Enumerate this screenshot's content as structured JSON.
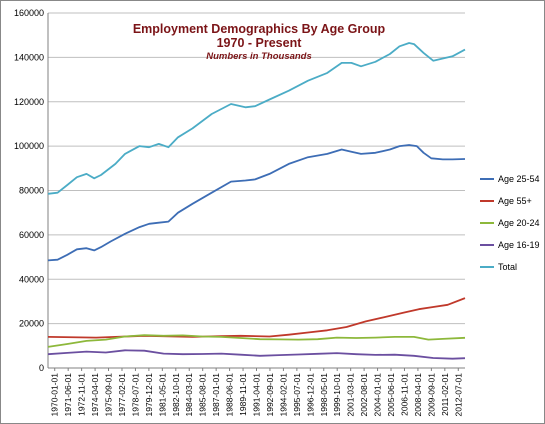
{
  "chart_data": {
    "type": "line",
    "title": "Employment Demographics By Age Group",
    "subtitle": "1970 - Present",
    "note": "Numbers in Thousands",
    "ylim": [
      0,
      160000
    ],
    "yticks": [
      0,
      20000,
      40000,
      60000,
      80000,
      100000,
      120000,
      140000,
      160000
    ],
    "ytick_labels": [
      "0",
      "20000",
      "40000",
      "60000",
      "80000",
      "100000",
      "120000",
      "140000",
      "160000"
    ],
    "grid": "horizontal",
    "legend_position": "right",
    "xlim": [
      1970.0,
      2013.3
    ],
    "xtick_labels": [
      "1970-01-01",
      "1971-06-01",
      "1972-11-01",
      "1974-04-01",
      "1975-09-01",
      "1977-02-01",
      "1978-07-01",
      "1979-12-01",
      "1981-05-01",
      "1982-10-01",
      "1984-03-01",
      "1985-08-01",
      "1987-01-01",
      "1988-06-01",
      "1989-11-01",
      "1991-04-01",
      "1992-09-01",
      "1994-02-01",
      "1995-07-01",
      "1996-12-01",
      "1998-05-01",
      "1999-10-01",
      "2001-03-01",
      "2002-08-01",
      "2004-01-01",
      "2005-06-01",
      "2006-11-01",
      "2008-04-01",
      "2009-09-01",
      "2011-02-01",
      "2012-07-01"
    ],
    "series": [
      {
        "name": "Age 25-54",
        "color": "#3d6db5",
        "x": [
          1970.0,
          1971.0,
          1972.0,
          1973.0,
          1974.0,
          1974.8,
          1975.5,
          1976.5,
          1978.0,
          1979.5,
          1980.5,
          1981.5,
          1982.5,
          1983.5,
          1985.0,
          1987.0,
          1989.0,
          1990.5,
          1991.5,
          1993.0,
          1995.0,
          1997.0,
          1999.0,
          2000.5,
          2001.5,
          2002.5,
          2004.0,
          2005.5,
          2006.5,
          2007.5,
          2008.3,
          2009.0,
          2009.8,
          2011.0,
          2012.0,
          2013.3
        ],
        "values": [
          48500,
          48800,
          51000,
          53500,
          54000,
          53000,
          54500,
          57000,
          60500,
          63500,
          65000,
          65500,
          66000,
          70000,
          74000,
          79000,
          84000,
          84500,
          85000,
          87500,
          92000,
          95000,
          96500,
          98500,
          97500,
          96500,
          97000,
          98500,
          100000,
          100500,
          100000,
          97000,
          94500,
          94000,
          94000,
          94200
        ]
      },
      {
        "name": "Age 55+",
        "color": "#c0392b",
        "x": [
          1970.0,
          1975.0,
          1978.0,
          1980.0,
          1985.0,
          1988.0,
          1990.0,
          1993.0,
          1995.0,
          1997.0,
          1999.0,
          2001.0,
          2003.0,
          2005.0,
          2007.0,
          2008.5,
          2010.0,
          2011.5,
          2013.3
        ],
        "values": [
          14000,
          13700,
          14200,
          14500,
          14000,
          14400,
          14500,
          14200,
          15000,
          16000,
          17000,
          18500,
          21000,
          23000,
          25000,
          26500,
          27500,
          28500,
          31500
        ]
      },
      {
        "name": "Age 20-24",
        "color": "#8db83b",
        "x": [
          1970.0,
          1972.0,
          1974.0,
          1976.0,
          1978.0,
          1980.0,
          1982.0,
          1984.0,
          1986.0,
          1988.0,
          1990.0,
          1992.0,
          1994.0,
          1996.0,
          1998.0,
          2000.0,
          2002.0,
          2004.0,
          2006.0,
          2008.0,
          2009.5,
          2011.0,
          2013.3
        ],
        "values": [
          9500,
          10800,
          12200,
          12800,
          14200,
          14800,
          14500,
          14700,
          14200,
          14000,
          13500,
          13000,
          12900,
          12800,
          13000,
          13700,
          13500,
          13700,
          14000,
          14000,
          12800,
          13100,
          13600
        ]
      },
      {
        "name": "Age 16-19",
        "color": "#6b4fa0",
        "x": [
          1970.0,
          1972.0,
          1974.0,
          1976.0,
          1978.0,
          1980.0,
          1982.0,
          1984.0,
          1986.0,
          1988.0,
          1990.0,
          1992.0,
          1994.0,
          1996.0,
          1998.0,
          2000.0,
          2002.0,
          2004.0,
          2006.0,
          2008.0,
          2010.0,
          2012.0,
          2013.3
        ],
        "values": [
          6200,
          6800,
          7400,
          7000,
          8000,
          7800,
          6500,
          6200,
          6300,
          6500,
          6000,
          5500,
          5800,
          6100,
          6400,
          6700,
          6200,
          5900,
          6000,
          5500,
          4500,
          4200,
          4400
        ]
      },
      {
        "name": "Total",
        "color": "#4bacc6",
        "x": [
          1970.0,
          1971.0,
          1972.0,
          1973.0,
          1974.0,
          1974.8,
          1975.5,
          1977.0,
          1978.0,
          1979.5,
          1980.5,
          1981.5,
          1982.5,
          1983.5,
          1985.0,
          1987.0,
          1989.0,
          1990.5,
          1991.5,
          1993.0,
          1995.0,
          1997.0,
          1999.0,
          2000.5,
          2001.5,
          2002.5,
          2004.0,
          2005.5,
          2006.5,
          2007.5,
          2008.0,
          2009.0,
          2010.0,
          2011.0,
          2012.0,
          2013.3
        ],
        "values": [
          78500,
          79000,
          82500,
          86000,
          87500,
          85500,
          87000,
          92000,
          96500,
          100000,
          99500,
          101000,
          99500,
          104000,
          108000,
          114500,
          119000,
          117500,
          118000,
          121000,
          125000,
          129500,
          133000,
          137500,
          137500,
          136000,
          138000,
          141500,
          145000,
          146500,
          146000,
          142000,
          138500,
          139500,
          140500,
          143500
        ]
      }
    ]
  }
}
